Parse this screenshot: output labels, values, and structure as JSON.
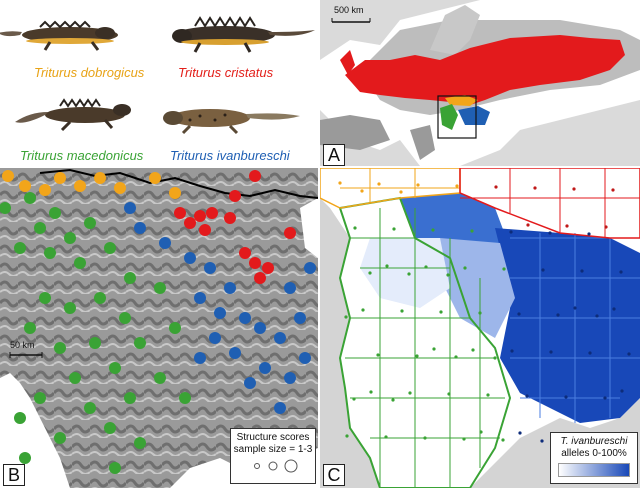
{
  "panelA": {
    "species": [
      {
        "name": "Triturus dobrogicus",
        "color": "#e8a317"
      },
      {
        "name": "Triturus cristatus",
        "color": "#e3201b"
      },
      {
        "name": "Triturus macedonicus",
        "color": "#3aa335"
      },
      {
        "name": "Triturus ivanbureschi",
        "color": "#1f5fb3"
      }
    ]
  },
  "map": {
    "scale": "500 km",
    "letter": "A"
  },
  "panelB": {
    "letter": "B",
    "scale": "50 km",
    "legend_line1": "Structure scores",
    "legend_line2": "sample size = 1-3"
  },
  "panelC": {
    "letter": "C",
    "legend_line1": "T. ivanbureschi",
    "legend_line2": "alleles 0-100%"
  },
  "colors": {
    "dobrogicus": "#f2a51a",
    "cristatus": "#e31a1c",
    "macedonicus": "#3aa335",
    "ivanbureschi": "#1f5fb3"
  }
}
